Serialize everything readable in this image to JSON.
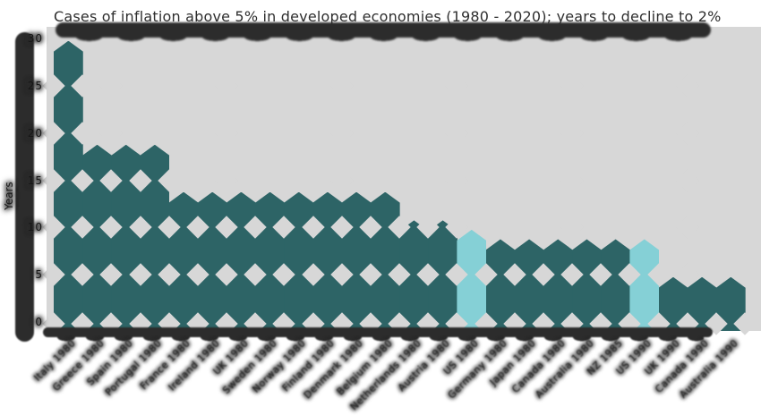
{
  "colors": {
    "bar": "#2d6466",
    "highlight": "#85d0d6",
    "plot_bg": "#d7d7d7",
    "blob": "#2c2c2c",
    "title_text": "#2e2e2e",
    "page_bg": "#ffffff"
  },
  "chart_data": {
    "type": "bar",
    "title": "Cases of inflation above 5% in developed economies (1980 - 2020); years to decline to 2%",
    "xlabel": "",
    "ylabel": "Years",
    "ylim": [
      0,
      30
    ],
    "yticks": [
      0,
      5,
      10,
      15,
      20,
      25,
      30
    ],
    "grid": false,
    "legend_position": "none",
    "bar_style": "touching bars with diamond cut-outs at gridline rows, pointed bead tops, hand-drawn blob distortion",
    "categories": [
      "Italy 1980",
      "Greece 1980",
      "Spain 1980",
      "Portugal 1980",
      "France 1980",
      "Ireland 1980",
      "UK 1980",
      "Sweden 1980",
      "Norway 1980",
      "Finland 1980",
      "Denmark 1980",
      "Belgium 1980",
      "Netherlands 1980",
      "Austria 1980",
      "US 1980",
      "Germany 1980",
      "Japan 1980",
      "Canada 1980",
      "Australia 1980",
      "NZ 1985",
      "US 1990",
      "UK 1990",
      "Canada 1990",
      "Australia 1990"
    ],
    "values": [
      29,
      18,
      18,
      18,
      13,
      13,
      13,
      13,
      13,
      13,
      13,
      13,
      10,
      10,
      9,
      8,
      8,
      8,
      8,
      8,
      8,
      4,
      4,
      4
    ],
    "highlight_indices": [
      14,
      20
    ]
  }
}
